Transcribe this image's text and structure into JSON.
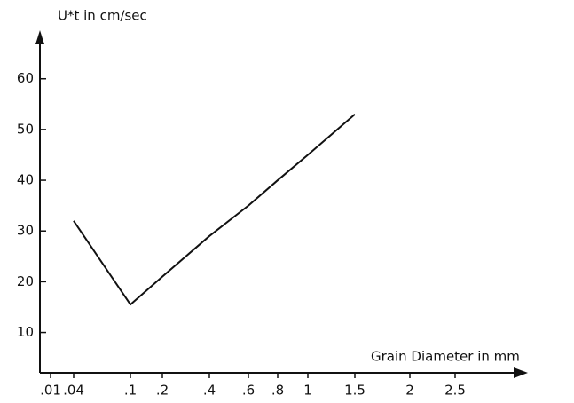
{
  "chart_data": {
    "type": "line",
    "y_label": "U*t in cm/sec",
    "x_label": "Grain Diameter in mm",
    "categories": [
      ".01",
      ".04",
      ".1",
      ".2",
      ".4",
      ".6",
      ".8",
      "1",
      "1.5",
      "2",
      "2.5"
    ],
    "series": [
      {
        "color": "#111111",
        "values": [
          null,
          32,
          15.5,
          21,
          29,
          35,
          40,
          45,
          53,
          null,
          null
        ]
      }
    ],
    "ylim": [
      1,
      68
    ],
    "yticks": [
      10,
      20,
      30,
      40,
      50,
      60
    ]
  }
}
